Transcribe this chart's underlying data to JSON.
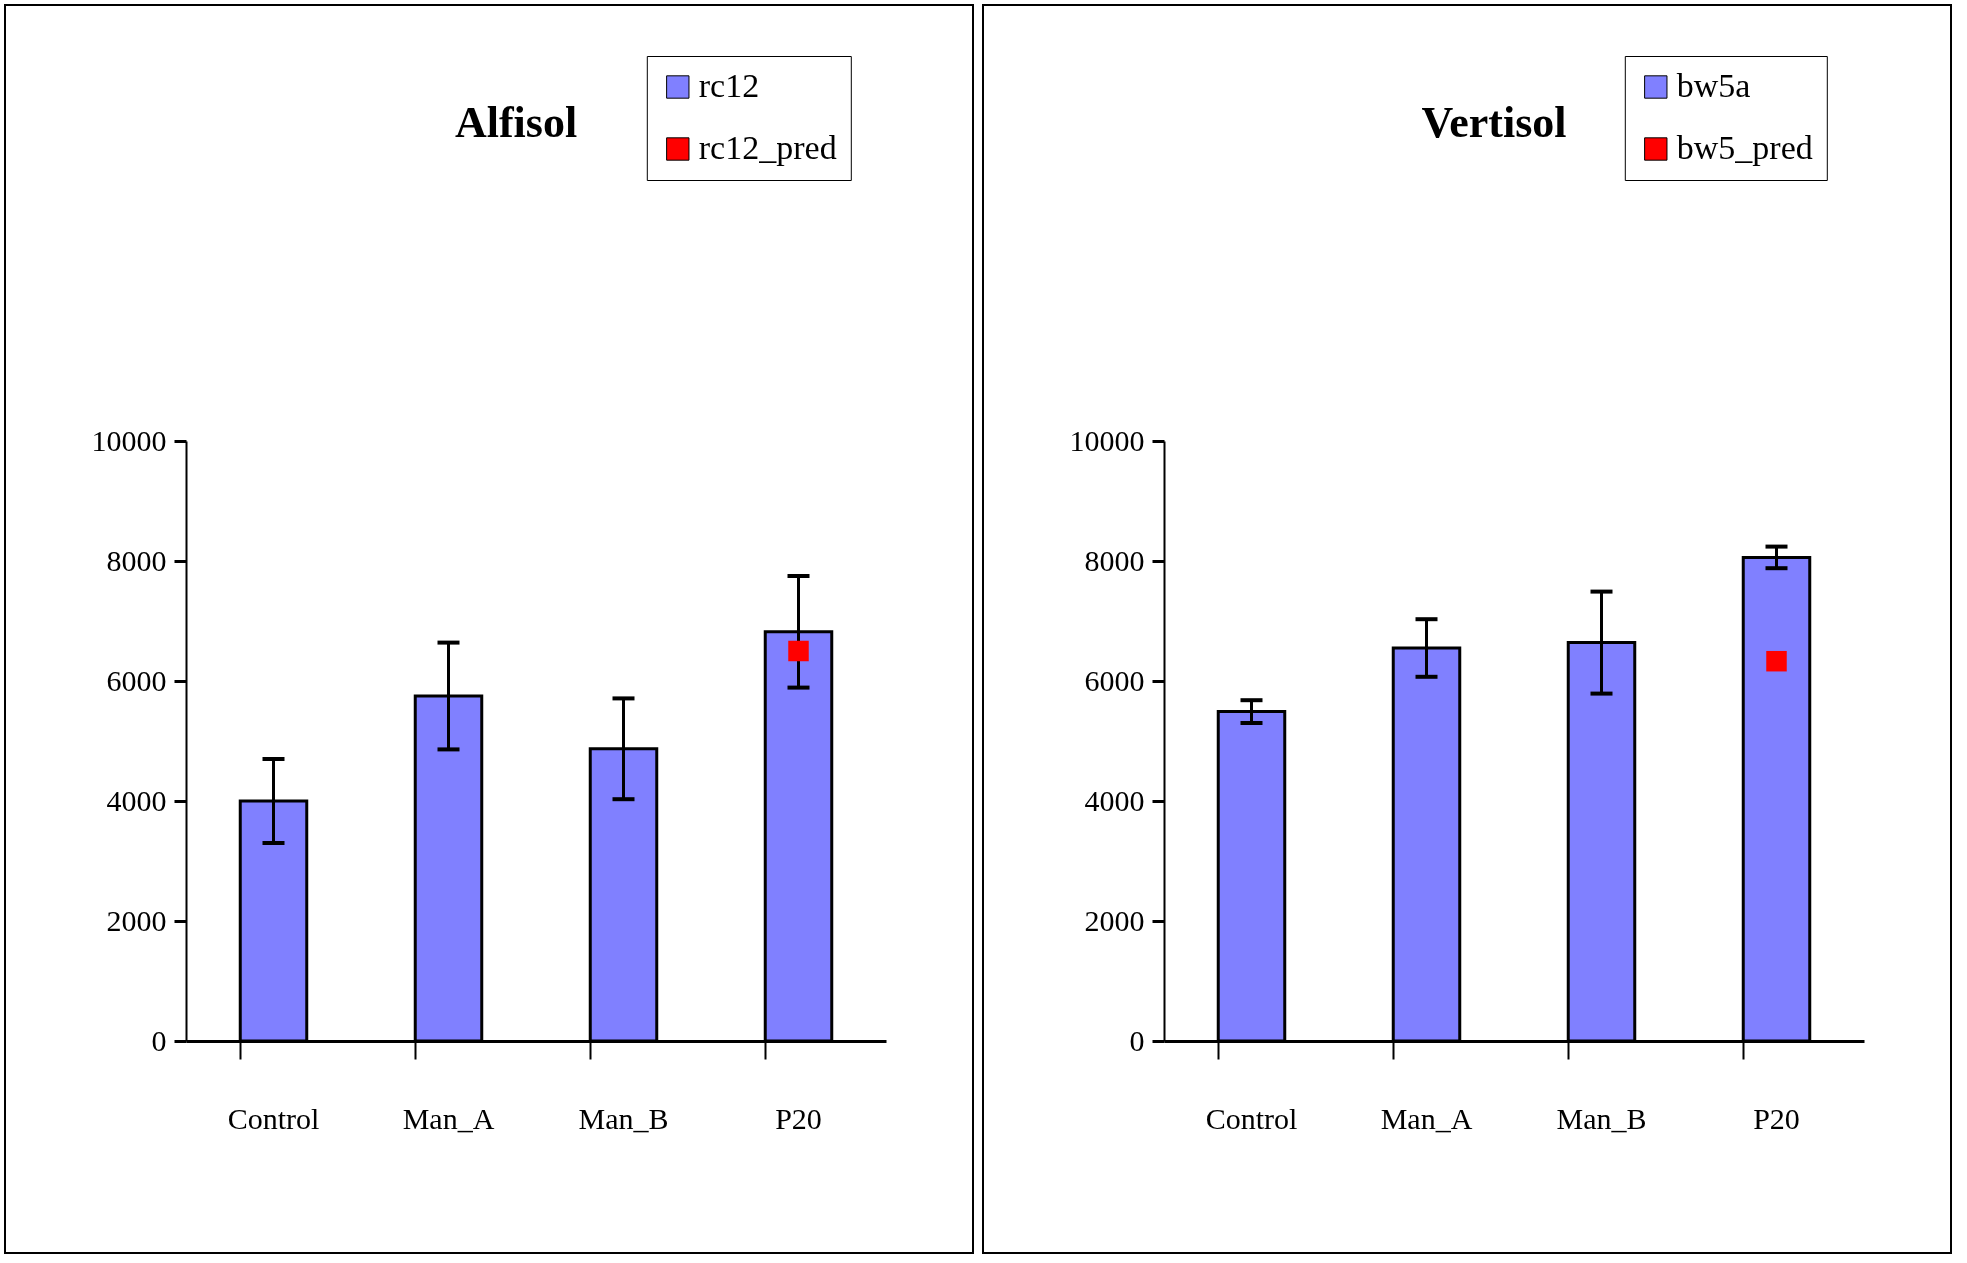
{
  "chart_data": [
    {
      "type": "bar",
      "title": "Alfisol",
      "categories": [
        "Control",
        "Man_A",
        "Man_B",
        "P20"
      ],
      "ylim": [
        0,
        10000
      ],
      "yticks": [
        0,
        2000,
        4000,
        6000,
        8000,
        10000
      ],
      "grid": false,
      "legend": "top right",
      "marker": "square",
      "series": [
        {
          "name": "rc12",
          "type": "bar",
          "color": "#8080ff",
          "values": [
            4000,
            5750,
            4870,
            6820
          ],
          "errors": [
            700,
            890,
            840,
            930
          ]
        },
        {
          "name": "rc12_pred",
          "type": "scatter",
          "color": "#ff0000",
          "x": [
            "P20"
          ],
          "values": [
            6500
          ]
        }
      ]
    },
    {
      "type": "bar",
      "title": "Vertisol",
      "categories": [
        "Control",
        "Man_A",
        "Man_B",
        "P20"
      ],
      "ylim": [
        0,
        10000
      ],
      "yticks": [
        0,
        2000,
        4000,
        6000,
        8000,
        10000
      ],
      "grid": false,
      "legend": "top right",
      "marker": "square",
      "series": [
        {
          "name": "bw5a",
          "type": "bar",
          "color": "#8080ff",
          "values": [
            5490,
            6550,
            6640,
            8060
          ],
          "errors": [
            190,
            480,
            850,
            180
          ]
        },
        {
          "name": "bw5_pred",
          "type": "scatter",
          "color": "#ff0000",
          "x": [
            "P20"
          ],
          "values": [
            6330
          ]
        }
      ]
    }
  ]
}
